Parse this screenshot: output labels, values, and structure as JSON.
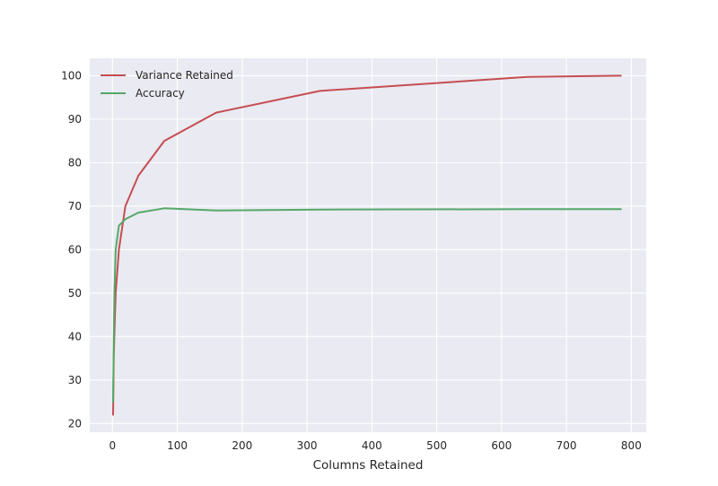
{
  "chart_data": {
    "type": "line",
    "title": "",
    "xlabel": "Columns Retained",
    "ylabel": "",
    "xlim": [
      -35,
      823
    ],
    "ylim": [
      18,
      104
    ],
    "xticks": [
      0,
      100,
      200,
      300,
      400,
      500,
      600,
      700,
      800
    ],
    "yticks": [
      20,
      30,
      40,
      50,
      60,
      70,
      80,
      90,
      100
    ],
    "grid": true,
    "legend_position": "top-left",
    "series": [
      {
        "name": "Variance Retained",
        "color": "#c44e52",
        "x": [
          1,
          2,
          3,
          5,
          10,
          20,
          40,
          80,
          160,
          320,
          640,
          784
        ],
        "y": [
          22,
          35,
          41,
          50,
          60,
          70,
          77,
          85,
          91.5,
          96.5,
          99.7,
          100
        ]
      },
      {
        "name": "Accuracy",
        "color": "#55a868",
        "x": [
          1,
          2,
          3,
          5,
          10,
          20,
          40,
          80,
          160,
          320,
          640,
          784
        ],
        "y": [
          25,
          38,
          50,
          60,
          65.5,
          67,
          68.5,
          69.5,
          69,
          69.2,
          69.3,
          69.3
        ]
      }
    ]
  }
}
